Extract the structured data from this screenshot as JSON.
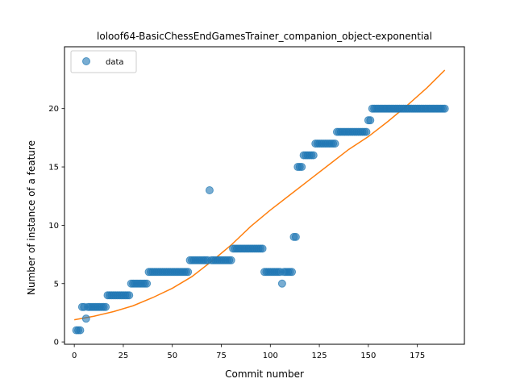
{
  "chart_data": {
    "type": "scatter",
    "title": "loloof64-BasicChessEndGamesTrainer_companion_object-exponential",
    "xlabel": "Commit number",
    "ylabel": "Number of instance of a feature",
    "xlim": [
      -5,
      199
    ],
    "ylim": [
      -0.2,
      25.3
    ],
    "xticks": [
      0,
      25,
      50,
      75,
      100,
      125,
      150,
      175
    ],
    "yticks": [
      0,
      5,
      10,
      15,
      20
    ],
    "legend": {
      "location": "top-left",
      "entries": [
        "data"
      ]
    },
    "colors": {
      "data": "#1f77b4",
      "fit": "#ff7f0e"
    },
    "series": [
      {
        "name": "data",
        "kind": "scatter",
        "points": [
          [
            1,
            1
          ],
          [
            2,
            1
          ],
          [
            3,
            1
          ],
          [
            4,
            3
          ],
          [
            5,
            3
          ],
          [
            6,
            2
          ],
          [
            7,
            3
          ],
          [
            8,
            3
          ],
          [
            9,
            3
          ],
          [
            10,
            3
          ],
          [
            11,
            3
          ],
          [
            12,
            3
          ],
          [
            13,
            3
          ],
          [
            14,
            3
          ],
          [
            15,
            3
          ],
          [
            16,
            3
          ],
          [
            17,
            4
          ],
          [
            18,
            4
          ],
          [
            19,
            4
          ],
          [
            20,
            4
          ],
          [
            21,
            4
          ],
          [
            22,
            4
          ],
          [
            23,
            4
          ],
          [
            24,
            4
          ],
          [
            25,
            4
          ],
          [
            26,
            4
          ],
          [
            27,
            4
          ],
          [
            28,
            4
          ],
          [
            29,
            5
          ],
          [
            30,
            5
          ],
          [
            31,
            5
          ],
          [
            32,
            5
          ],
          [
            33,
            5
          ],
          [
            34,
            5
          ],
          [
            35,
            5
          ],
          [
            36,
            5
          ],
          [
            37,
            5
          ],
          [
            38,
            6
          ],
          [
            39,
            6
          ],
          [
            40,
            6
          ],
          [
            41,
            6
          ],
          [
            42,
            6
          ],
          [
            43,
            6
          ],
          [
            44,
            6
          ],
          [
            45,
            6
          ],
          [
            46,
            6
          ],
          [
            47,
            6
          ],
          [
            48,
            6
          ],
          [
            49,
            6
          ],
          [
            50,
            6
          ],
          [
            51,
            6
          ],
          [
            52,
            6
          ],
          [
            53,
            6
          ],
          [
            54,
            6
          ],
          [
            55,
            6
          ],
          [
            56,
            6
          ],
          [
            57,
            6
          ],
          [
            58,
            6
          ],
          [
            59,
            7
          ],
          [
            60,
            7
          ],
          [
            61,
            7
          ],
          [
            62,
            7
          ],
          [
            63,
            7
          ],
          [
            64,
            7
          ],
          [
            65,
            7
          ],
          [
            66,
            7
          ],
          [
            67,
            7
          ],
          [
            68,
            7
          ],
          [
            69,
            13
          ],
          [
            70,
            7
          ],
          [
            71,
            7
          ],
          [
            72,
            7
          ],
          [
            73,
            7
          ],
          [
            74,
            7
          ],
          [
            75,
            7
          ],
          [
            76,
            7
          ],
          [
            77,
            7
          ],
          [
            78,
            7
          ],
          [
            79,
            7
          ],
          [
            80,
            7
          ],
          [
            81,
            8
          ],
          [
            82,
            8
          ],
          [
            83,
            8
          ],
          [
            84,
            8
          ],
          [
            85,
            8
          ],
          [
            86,
            8
          ],
          [
            87,
            8
          ],
          [
            88,
            8
          ],
          [
            89,
            8
          ],
          [
            90,
            8
          ],
          [
            91,
            8
          ],
          [
            92,
            8
          ],
          [
            93,
            8
          ],
          [
            94,
            8
          ],
          [
            95,
            8
          ],
          [
            96,
            8
          ],
          [
            97,
            6
          ],
          [
            98,
            6
          ],
          [
            99,
            6
          ],
          [
            100,
            6
          ],
          [
            101,
            6
          ],
          [
            102,
            6
          ],
          [
            103,
            6
          ],
          [
            104,
            6
          ],
          [
            105,
            6
          ],
          [
            106,
            5
          ],
          [
            107,
            6
          ],
          [
            108,
            6
          ],
          [
            109,
            6
          ],
          [
            110,
            6
          ],
          [
            111,
            6
          ],
          [
            112,
            9
          ],
          [
            113,
            9
          ],
          [
            114,
            15
          ],
          [
            115,
            15
          ],
          [
            116,
            15
          ],
          [
            117,
            16
          ],
          [
            118,
            16
          ],
          [
            119,
            16
          ],
          [
            120,
            16
          ],
          [
            121,
            16
          ],
          [
            122,
            16
          ],
          [
            123,
            17
          ],
          [
            124,
            17
          ],
          [
            125,
            17
          ],
          [
            126,
            17
          ],
          [
            127,
            17
          ],
          [
            128,
            17
          ],
          [
            129,
            17
          ],
          [
            130,
            17
          ],
          [
            131,
            17
          ],
          [
            132,
            17
          ],
          [
            133,
            17
          ],
          [
            134,
            18
          ],
          [
            135,
            18
          ],
          [
            136,
            18
          ],
          [
            137,
            18
          ],
          [
            138,
            18
          ],
          [
            139,
            18
          ],
          [
            140,
            18
          ],
          [
            141,
            18
          ],
          [
            142,
            18
          ],
          [
            143,
            18
          ],
          [
            144,
            18
          ],
          [
            145,
            18
          ],
          [
            146,
            18
          ],
          [
            147,
            18
          ],
          [
            148,
            18
          ],
          [
            149,
            18
          ],
          [
            150,
            19
          ],
          [
            151,
            19
          ],
          [
            152,
            20
          ],
          [
            153,
            20
          ],
          [
            154,
            20
          ],
          [
            155,
            20
          ],
          [
            156,
            20
          ],
          [
            157,
            20
          ],
          [
            158,
            20
          ],
          [
            159,
            20
          ],
          [
            160,
            20
          ],
          [
            161,
            20
          ],
          [
            162,
            20
          ],
          [
            163,
            20
          ],
          [
            164,
            20
          ],
          [
            165,
            20
          ],
          [
            166,
            20
          ],
          [
            167,
            20
          ],
          [
            168,
            20
          ],
          [
            169,
            20
          ],
          [
            170,
            20
          ],
          [
            171,
            20
          ],
          [
            172,
            20
          ],
          [
            173,
            20
          ],
          [
            174,
            20
          ],
          [
            175,
            20
          ],
          [
            176,
            20
          ],
          [
            177,
            20
          ],
          [
            178,
            20
          ],
          [
            179,
            20
          ],
          [
            180,
            20
          ],
          [
            181,
            20
          ],
          [
            182,
            20
          ],
          [
            183,
            20
          ],
          [
            184,
            20
          ],
          [
            185,
            20
          ],
          [
            186,
            20
          ],
          [
            187,
            20
          ],
          [
            188,
            20
          ],
          [
            189,
            20
          ]
        ]
      },
      {
        "name": "",
        "kind": "line",
        "points": [
          [
            0,
            1.9
          ],
          [
            10,
            2.2
          ],
          [
            20,
            2.6
          ],
          [
            30,
            3.1
          ],
          [
            40,
            3.8
          ],
          [
            50,
            4.6
          ],
          [
            60,
            5.6
          ],
          [
            70,
            6.9
          ],
          [
            80,
            8.3
          ],
          [
            90,
            9.9
          ],
          [
            100,
            11.3
          ],
          [
            110,
            12.6
          ],
          [
            120,
            13.9
          ],
          [
            130,
            15.2
          ],
          [
            140,
            16.5
          ],
          [
            150,
            17.6
          ],
          [
            160,
            18.9
          ],
          [
            170,
            20.3
          ],
          [
            180,
            21.8
          ],
          [
            189,
            23.3
          ]
        ]
      }
    ]
  }
}
